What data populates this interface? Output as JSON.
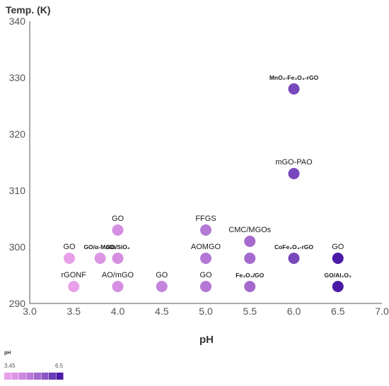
{
  "chart_data": {
    "type": "scatter",
    "title": "",
    "ylabel": "Temp. (K)",
    "xlabel": "pH",
    "xlim": [
      3.0,
      7.0
    ],
    "ylim": [
      290,
      340
    ],
    "x_ticks": [
      "3.0",
      "3.5",
      "4.0",
      "4.5",
      "5.0",
      "5.5",
      "6.0",
      "6.5",
      "7.0"
    ],
    "y_ticks": [
      "290",
      "300",
      "310",
      "320",
      "330",
      "340"
    ],
    "grid": false,
    "color_scale": {
      "title": "pH",
      "min_label": "3.45",
      "max_label": "6.5",
      "min": 3.45,
      "max": 6.5,
      "colors": [
        "#e8a0e8",
        "#dc96e4",
        "#cd89de",
        "#b97ad6",
        "#a46acd",
        "#8a55c2",
        "#6a3bb7",
        "#4a1aa6"
      ]
    },
    "points": [
      {
        "x": 3.45,
        "y": 298,
        "label": "GO",
        "color": "#e8a0e8"
      },
      {
        "x": 3.5,
        "y": 293,
        "label": "rGONF",
        "color": "#e8a0e8"
      },
      {
        "x": 3.8,
        "y": 298,
        "label": "GO/α-MnO₂",
        "color": "#dc96e4"
      },
      {
        "x": 4.0,
        "y": 303,
        "label": "GO",
        "color": "#d58fe1"
      },
      {
        "x": 4.0,
        "y": 298,
        "label": "GO/SiO₂",
        "color": "#d58fe1"
      },
      {
        "x": 4.0,
        "y": 293,
        "label": "AO/mGO",
        "color": "#d58fe1"
      },
      {
        "x": 4.5,
        "y": 293,
        "label": "GO",
        "color": "#c584dc"
      },
      {
        "x": 5.0,
        "y": 303,
        "label": "FFGS",
        "color": "#b478d5"
      },
      {
        "x": 5.0,
        "y": 298,
        "label": "AOMGO",
        "color": "#b478d5"
      },
      {
        "x": 5.0,
        "y": 293,
        "label": "GO",
        "color": "#b478d5"
      },
      {
        "x": 5.5,
        "y": 301,
        "label": "CMC/MGOs",
        "color": "#a46acd"
      },
      {
        "x": 5.5,
        "y": 298,
        "label": "",
        "color": "#a46acd"
      },
      {
        "x": 5.5,
        "y": 293,
        "label": "Fe₃O₄/GO",
        "color": "#a46acd"
      },
      {
        "x": 6.0,
        "y": 328,
        "label": "MnO₂-Fe₃O₄-rGO",
        "color": "#7a48bd"
      },
      {
        "x": 6.0,
        "y": 313,
        "label": "mGO-PAO",
        "color": "#7a48bd"
      },
      {
        "x": 6.0,
        "y": 298,
        "label": "CoFe₂O₄-rGO",
        "color": "#7a48bd"
      },
      {
        "x": 6.5,
        "y": 298,
        "label": "GO",
        "color": "#4a1aa6"
      },
      {
        "x": 6.5,
        "y": 293,
        "label": "GO/Al₂O₃",
        "color": "#4a1aa6"
      }
    ]
  }
}
